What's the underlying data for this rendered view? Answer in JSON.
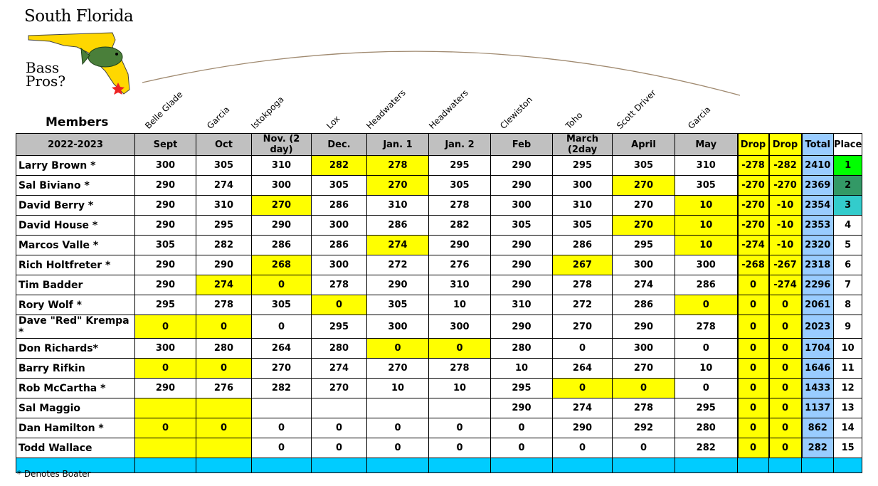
{
  "logo": {
    "title": "South Florida",
    "subtitle_line1": "Bass",
    "subtitle_line2": "Pros?",
    "icon": "florida-bass-logo"
  },
  "venues": [
    "Belle Glade",
    "Garcia",
    "Istokpoga",
    "Lox",
    "Headwaters",
    "Headwaters",
    "Clewiston",
    "Toho",
    "Scott Driver",
    "Garcia"
  ],
  "members_label": "Members",
  "header": {
    "season": "2022-2023",
    "months": [
      "Sept",
      "Oct",
      "Nov. (2 day)",
      "Dec.",
      "Jan. 1",
      "Jan. 2",
      "Feb",
      "March (2day",
      "April",
      "May"
    ],
    "drop1": "Drop",
    "drop2": "Drop",
    "total": "Total",
    "place": "Place"
  },
  "rows": [
    {
      "name": "Larry Brown *",
      "scores": [
        "300",
        "305",
        "310",
        "282",
        "278",
        "295",
        "290",
        "295",
        "305",
        "310"
      ],
      "hl": [
        3,
        4
      ],
      "drop1": "-278",
      "drop2": "-282",
      "total": "2410",
      "place": "1",
      "pc": "p1"
    },
    {
      "name": "Sal Biviano *",
      "scores": [
        "290",
        "274",
        "300",
        "305",
        "270",
        "305",
        "290",
        "300",
        "270",
        "305"
      ],
      "hl": [
        4,
        8
      ],
      "drop1": "-270",
      "drop2": "-270",
      "total": "2369",
      "place": "2",
      "pc": "p2"
    },
    {
      "name": "David Berry *",
      "scores": [
        "290",
        "310",
        "270",
        "286",
        "310",
        "278",
        "300",
        "310",
        "270",
        "10"
      ],
      "hl": [
        2,
        9
      ],
      "drop1": "-270",
      "drop2": "-10",
      "total": "2354",
      "place": "3",
      "pc": "p3"
    },
    {
      "name": "David House *",
      "scores": [
        "290",
        "295",
        "290",
        "300",
        "286",
        "282",
        "305",
        "305",
        "270",
        "10"
      ],
      "hl": [
        8,
        9
      ],
      "drop1": "-270",
      "drop2": "-10",
      "total": "2353",
      "place": "4",
      "pc": ""
    },
    {
      "name": "Marcos Valle *",
      "scores": [
        "305",
        "282",
        "286",
        "286",
        "274",
        "290",
        "290",
        "286",
        "295",
        "10"
      ],
      "hl": [
        4,
        9
      ],
      "drop1": "-274",
      "drop2": "-10",
      "total": "2320",
      "place": "5",
      "pc": ""
    },
    {
      "name": "Rich Holtfreter *",
      "scores": [
        "290",
        "290",
        "268",
        "300",
        "272",
        "276",
        "290",
        "267",
        "300",
        "300"
      ],
      "hl": [
        2,
        7
      ],
      "drop1": "-268",
      "drop2": "-267",
      "total": "2318",
      "place": "6",
      "pc": ""
    },
    {
      "name": "Tim Badder",
      "scores": [
        "290",
        "274",
        "0",
        "278",
        "290",
        "310",
        "290",
        "278",
        "274",
        "286"
      ],
      "hl": [
        1,
        2
      ],
      "drop1": "0",
      "drop2": "-274",
      "total": "2296",
      "place": "7",
      "pc": ""
    },
    {
      "name": "Rory Wolf *",
      "scores": [
        "295",
        "278",
        "305",
        "0",
        "305",
        "10",
        "310",
        "272",
        "286",
        "0"
      ],
      "hl": [
        3,
        9
      ],
      "drop1": "0",
      "drop2": "0",
      "total": "2061",
      "place": "8",
      "pc": ""
    },
    {
      "name": "Dave \"Red\" Krempa *",
      "scores": [
        "0",
        "0",
        "0",
        "295",
        "300",
        "300",
        "290",
        "270",
        "290",
        "278"
      ],
      "hl": [
        0,
        1
      ],
      "drop1": "0",
      "drop2": "0",
      "total": "2023",
      "place": "9",
      "pc": ""
    },
    {
      "name": "Don Richards*",
      "scores": [
        "300",
        "280",
        "264",
        "280",
        "0",
        "0",
        "280",
        "0",
        "300",
        "0"
      ],
      "hl": [
        4,
        5
      ],
      "drop1": "0",
      "drop2": "0",
      "total": "1704",
      "place": "10",
      "pc": ""
    },
    {
      "name": "Barry Rifkin",
      "scores": [
        "0",
        "0",
        "270",
        "274",
        "270",
        "278",
        "10",
        "264",
        "270",
        "10"
      ],
      "hl": [
        0,
        1
      ],
      "drop1": "0",
      "drop2": "0",
      "total": "1646",
      "place": "11",
      "pc": ""
    },
    {
      "name": "Rob McCartha *",
      "scores": [
        "290",
        "276",
        "282",
        "270",
        "10",
        "10",
        "295",
        "0",
        "0",
        "0"
      ],
      "hl": [
        7,
        8
      ],
      "drop1": "0",
      "drop2": "0",
      "total": "1433",
      "place": "12",
      "pc": ""
    },
    {
      "name": "Sal Maggio",
      "scores": [
        "",
        "",
        "",
        "",
        "",
        "",
        "290",
        "274",
        "278",
        "295"
      ],
      "hl": [
        0,
        1
      ],
      "drop1": "0",
      "drop2": "0",
      "total": "1137",
      "place": "13",
      "pc": ""
    },
    {
      "name": "Dan Hamilton *",
      "scores": [
        "0",
        "0",
        "0",
        "0",
        "0",
        "0",
        "0",
        "290",
        "292",
        "280"
      ],
      "hl": [
        0,
        1
      ],
      "drop1": "0",
      "drop2": "0",
      "total": "862",
      "place": "14",
      "pc": ""
    },
    {
      "name": "Todd Wallace",
      "scores": [
        "",
        "",
        "0",
        "0",
        "0",
        "0",
        "0",
        "0",
        "0",
        "282"
      ],
      "hl": [
        0,
        1
      ],
      "drop1": "0",
      "drop2": "0",
      "total": "282",
      "place": "15",
      "pc": ""
    }
  ],
  "footnote": "* Denotes Boater",
  "colors": {
    "highlight": "#ffff00",
    "total": "#99ccff",
    "place1": "#00ff00",
    "place2": "#339966",
    "place3": "#33cccc",
    "footer_bar": "#00ccff",
    "header_gray": "#c0c0c0"
  }
}
